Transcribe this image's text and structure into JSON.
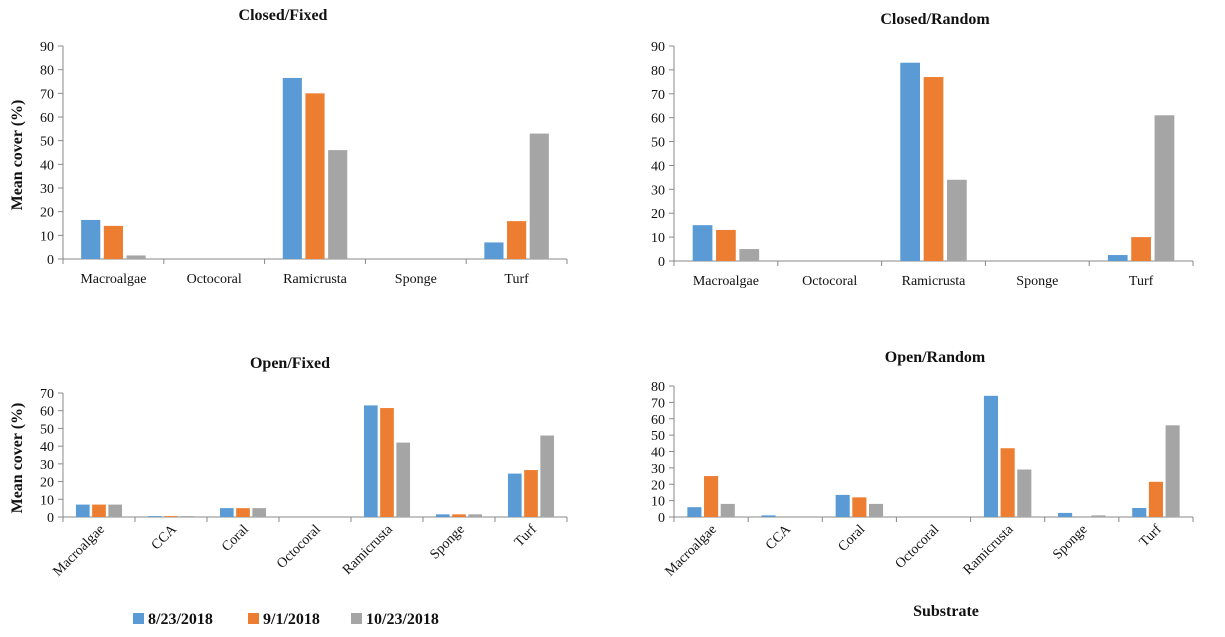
{
  "chart_data": [
    {
      "type": "bar",
      "title": "Closed/Fixed",
      "ylabel": "Mean cover (%)",
      "xlabel": "",
      "ylim": [
        0,
        90
      ],
      "yticks": [
        "0",
        "10",
        "20",
        "30",
        "40",
        "50",
        "60",
        "70",
        "80",
        "90"
      ],
      "categories": [
        "Macroalgae",
        "Octocoral",
        "Ramicrusta",
        "Sponge",
        "Turf"
      ],
      "series": [
        {
          "name": "8/23/2018",
          "values": [
            16.5,
            0,
            76.5,
            0,
            7
          ]
        },
        {
          "name": "9/1/2018",
          "values": [
            14,
            0,
            70,
            0,
            16
          ]
        },
        {
          "name": "10/23/2018",
          "values": [
            1.5,
            0,
            46,
            0,
            53
          ]
        }
      ]
    },
    {
      "type": "bar",
      "title": "Closed/Random",
      "ylabel": "",
      "xlabel": "",
      "ylim": [
        0,
        90
      ],
      "yticks": [
        "0",
        "10",
        "20",
        "30",
        "40",
        "50",
        "60",
        "70",
        "80",
        "90"
      ],
      "categories": [
        "Macroalgae",
        "Octocoral",
        "Ramicrusta",
        "Sponge",
        "Turf"
      ],
      "series": [
        {
          "name": "8/23/2018",
          "values": [
            15,
            0,
            83,
            0,
            2.5
          ]
        },
        {
          "name": "9/1/2018",
          "values": [
            13,
            0,
            77,
            0,
            10
          ]
        },
        {
          "name": "10/23/2018",
          "values": [
            5,
            0,
            34,
            0,
            61
          ]
        }
      ]
    },
    {
      "type": "bar",
      "title": "Open/Fixed",
      "ylabel": "Mean cover (%)",
      "xlabel": "",
      "ylim": [
        0,
        70
      ],
      "yticks": [
        "0",
        "10",
        "20",
        "30",
        "40",
        "50",
        "60",
        "70"
      ],
      "categories": [
        "Macroalgae",
        "CCA",
        "Coral",
        "Octocoral",
        "Ramicrusta",
        "Sponge",
        "Turf"
      ],
      "series": [
        {
          "name": "8/23/2018",
          "values": [
            7,
            0.5,
            5,
            0,
            63,
            1.5,
            24.5
          ]
        },
        {
          "name": "9/1/2018",
          "values": [
            7,
            0.5,
            5,
            0,
            61.5,
            1.5,
            26.5
          ]
        },
        {
          "name": "10/23/2018",
          "values": [
            7,
            0.5,
            5,
            0,
            42,
            1.5,
            46
          ]
        }
      ]
    },
    {
      "type": "bar",
      "title": "Open/Random",
      "ylabel": "",
      "xlabel": "Substrate",
      "ylim": [
        0,
        80
      ],
      "yticks": [
        "0",
        "10",
        "20",
        "30",
        "40",
        "50",
        "60",
        "70",
        "80"
      ],
      "categories": [
        "Macroalgae",
        "CCA",
        "Coral",
        "Octocoral",
        "Ramicrusta",
        "Sponge",
        "Turf"
      ],
      "series": [
        {
          "name": "8/23/2018",
          "values": [
            6,
            1,
            13.5,
            0,
            74,
            2.5,
            5.5
          ]
        },
        {
          "name": "9/1/2018",
          "values": [
            25,
            0,
            12,
            0,
            42,
            0,
            21.5
          ]
        },
        {
          "name": "10/23/2018",
          "values": [
            8,
            0,
            8,
            0,
            29,
            1,
            56
          ]
        }
      ]
    }
  ],
  "legend": {
    "position": "bottom-left",
    "items": [
      {
        "label": "8/23/2018",
        "color": "#5B9BD5"
      },
      {
        "label": "9/1/2018",
        "color": "#ED7D31"
      },
      {
        "label": "10/23/2018",
        "color": "#A5A5A5"
      }
    ]
  }
}
